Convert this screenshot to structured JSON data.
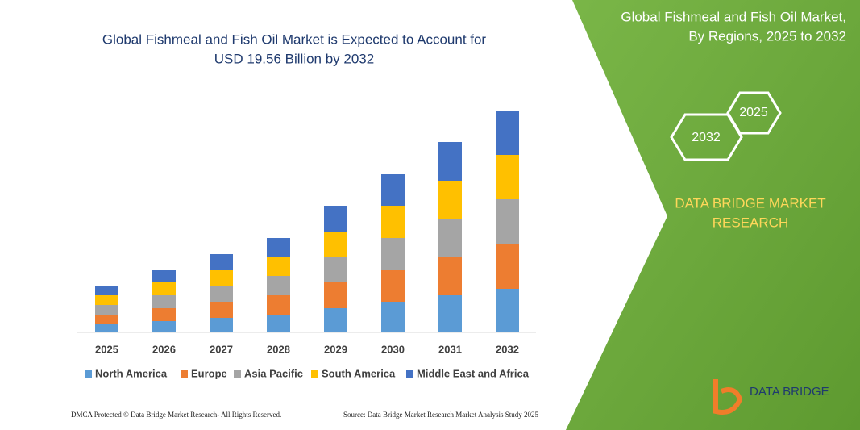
{
  "chart_data": {
    "type": "stacked_bar",
    "title": [
      "Global Fishmeal and Fish Oil Market is Expected to Account for",
      "USD 19.56 Billion by 2032"
    ],
    "categories": [
      "2025",
      "2026",
      "2027",
      "2028",
      "2029",
      "2030",
      "2031",
      "2032"
    ],
    "series": [
      {
        "name": "North America",
        "color": "#5b9bd5",
        "values": [
          10,
          14,
          18,
          22,
          30,
          38,
          46,
          54
        ]
      },
      {
        "name": "Europe",
        "color": "#ed7d31",
        "values": [
          12,
          16,
          20,
          24,
          32,
          39,
          47,
          55
        ]
      },
      {
        "name": "Asia Pacific",
        "color": "#a5a5a5",
        "values": [
          12,
          16,
          20,
          24,
          31,
          40,
          48,
          56
        ]
      },
      {
        "name": "South America",
        "color": "#ffc000",
        "values": [
          12,
          16,
          19,
          23,
          32,
          40,
          47,
          55
        ]
      },
      {
        "name": "Middle East and Africa",
        "color": "#4472c4",
        "values": [
          12,
          15,
          20,
          24,
          32,
          39,
          48,
          55
        ]
      }
    ],
    "ylim": [
      0,
      275
    ],
    "grid": false,
    "legend": "bottom"
  },
  "panel": {
    "title": [
      "Global Fishmeal and Fish Oil Market,",
      "By Regions, 2025 to 2032"
    ],
    "hexagons": [
      "2025",
      "2032"
    ],
    "brand": [
      "DATA BRIDGE MARKET",
      "RESEARCH"
    ],
    "logo": "DATA BRIDGE"
  },
  "footer": {
    "left": "DMCA Protected © Data Bridge Market Research-  All Rights Reserved.",
    "right": "Source: Data Bridge Market Research  Market Analysis Study 2025"
  }
}
